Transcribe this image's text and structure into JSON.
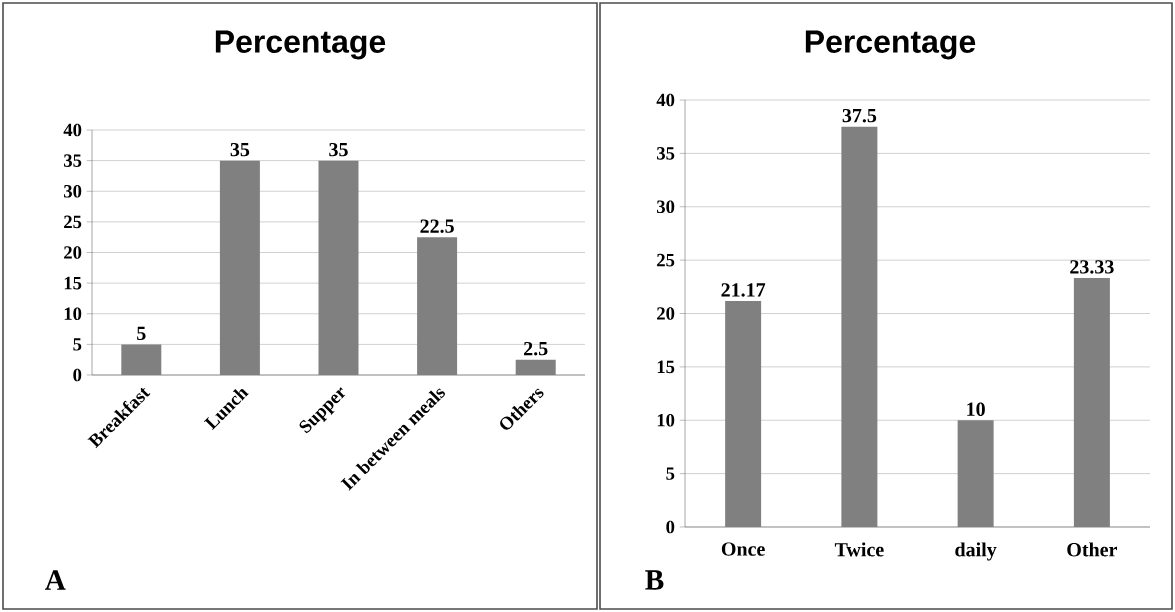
{
  "chart_data": [
    {
      "type": "bar",
      "title": "Percentage",
      "categories": [
        "Breakfast",
        "Lunch",
        "Supper",
        "In between meals",
        "Others"
      ],
      "values": [
        5,
        35,
        35,
        22.5,
        2.5
      ],
      "color": "#808080",
      "ylim": [
        0,
        40
      ],
      "yticks": [
        0,
        5,
        10,
        15,
        20,
        25,
        30,
        35,
        40
      ],
      "grid": "y",
      "data_labels": true,
      "annotations": [
        "A"
      ]
    },
    {
      "type": "bar",
      "title": "Percentage",
      "categories": [
        "Once",
        "Twice",
        "daily",
        "Other"
      ],
      "values": [
        21.17,
        37.5,
        10,
        23.33
      ],
      "color": "#808080",
      "ylim": [
        0,
        40
      ],
      "yticks": [
        0,
        5,
        10,
        15,
        20,
        25,
        30,
        35,
        40
      ],
      "grid": "y",
      "data_labels": true,
      "annotations": [
        "B"
      ]
    }
  ]
}
